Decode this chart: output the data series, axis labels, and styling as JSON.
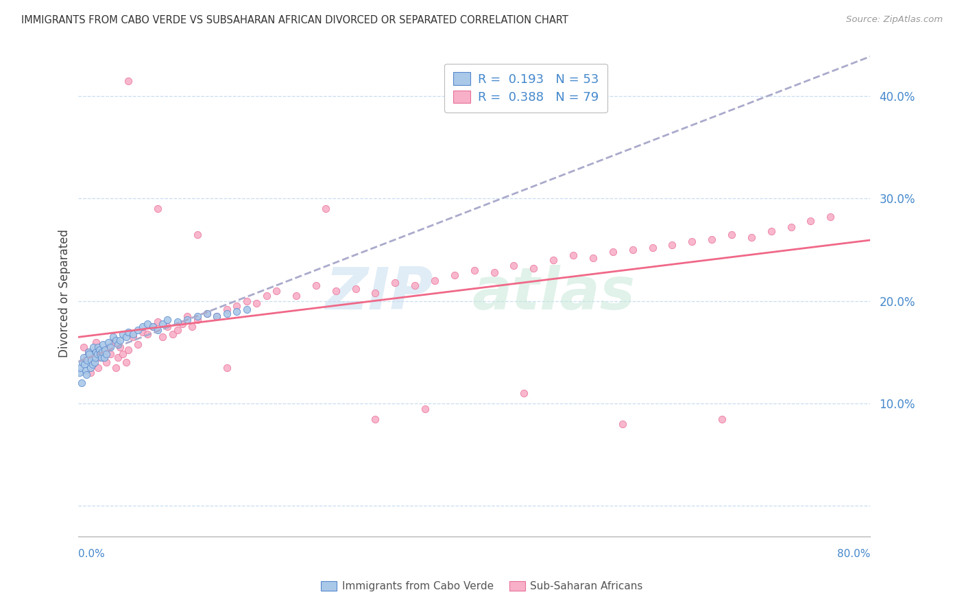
{
  "title": "IMMIGRANTS FROM CABO VERDE VS SUBSAHARAN AFRICAN DIVORCED OR SEPARATED CORRELATION CHART",
  "source": "Source: ZipAtlas.com",
  "ylabel": "Divorced or Separated",
  "xlim": [
    0.0,
    0.8
  ],
  "ylim": [
    -0.03,
    0.445
  ],
  "cabo_verde_R": 0.193,
  "cabo_verde_N": 53,
  "subsaharan_R": 0.388,
  "subsaharan_N": 79,
  "cabo_verde_color": "#aac8e8",
  "subsaharan_color": "#f8b0c8",
  "cabo_verde_edge_color": "#5588cc",
  "subsaharan_edge_color": "#e87098",
  "cabo_verde_line_color": "#8899cc",
  "subsaharan_line_color": "#f06888",
  "text_color": "#4488cc",
  "grid_color": "#c8ddf0",
  "bottom_spine_color": "#aaaaaa",
  "yticks": [
    0.0,
    0.1,
    0.2,
    0.3,
    0.4
  ],
  "ytick_labels": [
    "",
    "10.0%",
    "20.0%",
    "30.0%",
    "40.0%"
  ],
  "cabo_verde_x": [
    0.001,
    0.002,
    0.003,
    0.004,
    0.005,
    0.006,
    0.007,
    0.008,
    0.009,
    0.01,
    0.011,
    0.012,
    0.013,
    0.014,
    0.015,
    0.016,
    0.017,
    0.018,
    0.019,
    0.02,
    0.021,
    0.022,
    0.023,
    0.024,
    0.025,
    0.026,
    0.027,
    0.028,
    0.03,
    0.032,
    0.035,
    0.038,
    0.04,
    0.042,
    0.045,
    0.048,
    0.05,
    0.055,
    0.06,
    0.065,
    0.07,
    0.075,
    0.08,
    0.085,
    0.09,
    0.1,
    0.11,
    0.12,
    0.13,
    0.14,
    0.15,
    0.16,
    0.17
  ],
  "cabo_verde_y": [
    0.13,
    0.135,
    0.12,
    0.14,
    0.145,
    0.138,
    0.132,
    0.128,
    0.142,
    0.15,
    0.148,
    0.135,
    0.142,
    0.138,
    0.155,
    0.14,
    0.145,
    0.15,
    0.148,
    0.155,
    0.152,
    0.148,
    0.145,
    0.15,
    0.158,
    0.145,
    0.152,
    0.148,
    0.16,
    0.155,
    0.165,
    0.162,
    0.158,
    0.162,
    0.168,
    0.165,
    0.17,
    0.168,
    0.172,
    0.175,
    0.178,
    0.175,
    0.172,
    0.178,
    0.182,
    0.18,
    0.182,
    0.185,
    0.188,
    0.185,
    0.188,
    0.19,
    0.192
  ],
  "subsaharan_x": [
    0.005,
    0.008,
    0.01,
    0.012,
    0.015,
    0.018,
    0.02,
    0.022,
    0.025,
    0.028,
    0.03,
    0.032,
    0.035,
    0.038,
    0.04,
    0.042,
    0.045,
    0.048,
    0.05,
    0.055,
    0.06,
    0.065,
    0.07,
    0.075,
    0.08,
    0.085,
    0.09,
    0.095,
    0.1,
    0.105,
    0.11,
    0.115,
    0.12,
    0.13,
    0.14,
    0.15,
    0.16,
    0.17,
    0.18,
    0.19,
    0.2,
    0.22,
    0.24,
    0.26,
    0.28,
    0.3,
    0.32,
    0.34,
    0.36,
    0.38,
    0.4,
    0.42,
    0.44,
    0.46,
    0.48,
    0.5,
    0.52,
    0.54,
    0.56,
    0.58,
    0.6,
    0.62,
    0.64,
    0.66,
    0.68,
    0.7,
    0.72,
    0.74,
    0.76,
    0.05,
    0.08,
    0.12,
    0.15,
    0.25,
    0.3,
    0.35,
    0.45,
    0.55,
    0.65
  ],
  "subsaharan_y": [
    0.155,
    0.145,
    0.15,
    0.13,
    0.14,
    0.16,
    0.135,
    0.145,
    0.15,
    0.14,
    0.155,
    0.148,
    0.16,
    0.135,
    0.145,
    0.155,
    0.148,
    0.14,
    0.152,
    0.165,
    0.158,
    0.17,
    0.168,
    0.175,
    0.18,
    0.165,
    0.175,
    0.168,
    0.172,
    0.178,
    0.185,
    0.175,
    0.182,
    0.188,
    0.185,
    0.192,
    0.195,
    0.2,
    0.198,
    0.205,
    0.21,
    0.205,
    0.215,
    0.21,
    0.212,
    0.208,
    0.218,
    0.215,
    0.22,
    0.225,
    0.23,
    0.228,
    0.235,
    0.232,
    0.24,
    0.245,
    0.242,
    0.248,
    0.25,
    0.252,
    0.255,
    0.258,
    0.26,
    0.265,
    0.262,
    0.268,
    0.272,
    0.278,
    0.282,
    0.415,
    0.29,
    0.265,
    0.135,
    0.29,
    0.085,
    0.095,
    0.11,
    0.08,
    0.085
  ]
}
